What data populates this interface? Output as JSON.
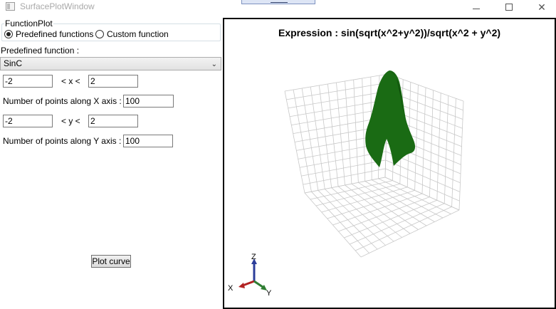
{
  "window": {
    "title": "SurfacePlotWindow",
    "icon": "window-app-icon",
    "minimize_icon": "minimize-icon",
    "maximize_icon": "maximize-icon",
    "close_glyph": "✕"
  },
  "function_group": {
    "legend": "FunctionPlot",
    "options": [
      {
        "label": "Predefined functions",
        "checked": true
      },
      {
        "label": "Custom function",
        "checked": false
      }
    ]
  },
  "predefined": {
    "label": "Predefined function :",
    "selected": "SinC"
  },
  "x_range": {
    "min": "-2",
    "sep": "< x <",
    "max": "2",
    "points_label": "Number of points along X axis :",
    "points": "100"
  },
  "y_range": {
    "min": "-2",
    "sep": "< y <",
    "max": "2",
    "points_label": "Number of points along Y axis :",
    "points": "100"
  },
  "plot_button": "Plot curve",
  "viewport": {
    "expression": "Expression : sin(sqrt(x^2+y^2))/sqrt(x^2 + y^2)",
    "axes": {
      "x": "X",
      "y": "Y",
      "z": "Z"
    },
    "surface_color": "#1a6b14",
    "grid_color": "#c8c8c8",
    "axis_colors": {
      "x": "#b22222",
      "y": "#2e7d32",
      "z": "#2c3e9a"
    }
  }
}
